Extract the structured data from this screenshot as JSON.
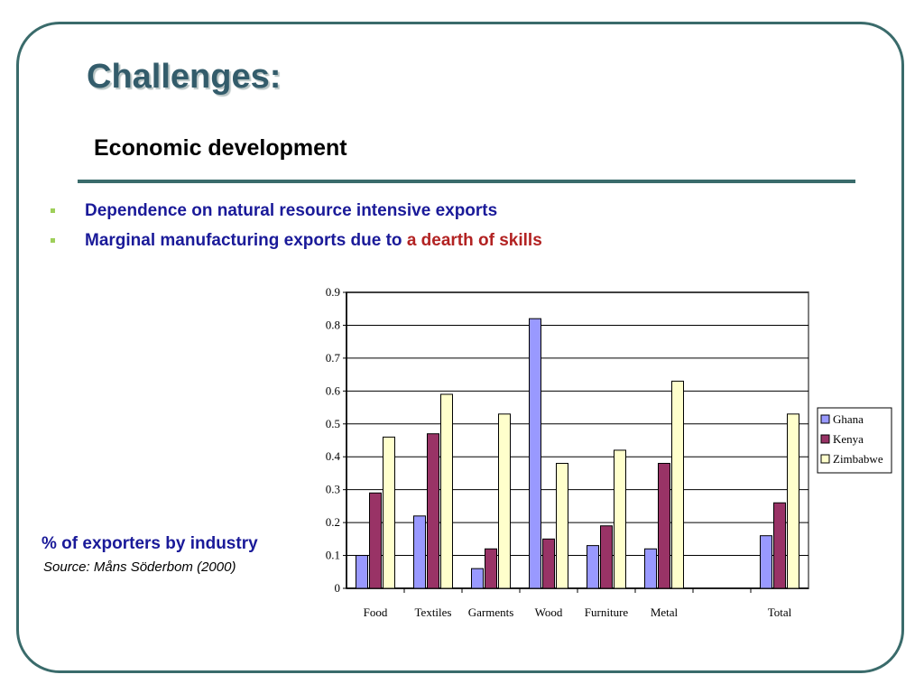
{
  "slide": {
    "title": "Challenges:",
    "subtitle": "Economic development",
    "bullets": [
      {
        "text": "Dependence on natural resource intensive exports",
        "highlight": ""
      },
      {
        "text": "Marginal manufacturing exports due to ",
        "highlight": "a dearth of skills"
      }
    ],
    "caption": "% of exporters by industry",
    "source": "Source: Måns Söderbom (2000)"
  },
  "colors": {
    "frame": "#3a6b6b",
    "title": "#335c6b",
    "bullet_text": "#1a1a99",
    "highlight": "#b22222",
    "bullet_mark": "#9ecf5a"
  },
  "chart_data": {
    "type": "bar",
    "categories": [
      "Food",
      "Textiles",
      "Garments",
      "Wood",
      "Furniture",
      "Metal",
      "",
      "Total"
    ],
    "series": [
      {
        "name": "Ghana",
        "color": "#9999ff",
        "values": [
          0.1,
          0.22,
          0.06,
          0.82,
          0.13,
          0.12,
          null,
          0.16
        ]
      },
      {
        "name": "Kenya",
        "color": "#993366",
        "values": [
          0.29,
          0.47,
          0.12,
          0.15,
          0.19,
          0.38,
          null,
          0.26
        ]
      },
      {
        "name": "Zimbabwe",
        "color": "#ffffcc",
        "values": [
          0.46,
          0.59,
          0.53,
          0.38,
          0.42,
          0.63,
          null,
          0.53
        ]
      }
    ],
    "ylim": [
      0,
      0.9
    ],
    "yticks": [
      "0",
      "0.1",
      "0.2",
      "0.3",
      "0.4",
      "0.5",
      "0.6",
      "0.7",
      "0.8",
      "0.9"
    ],
    "grid": true,
    "legend": "right"
  }
}
